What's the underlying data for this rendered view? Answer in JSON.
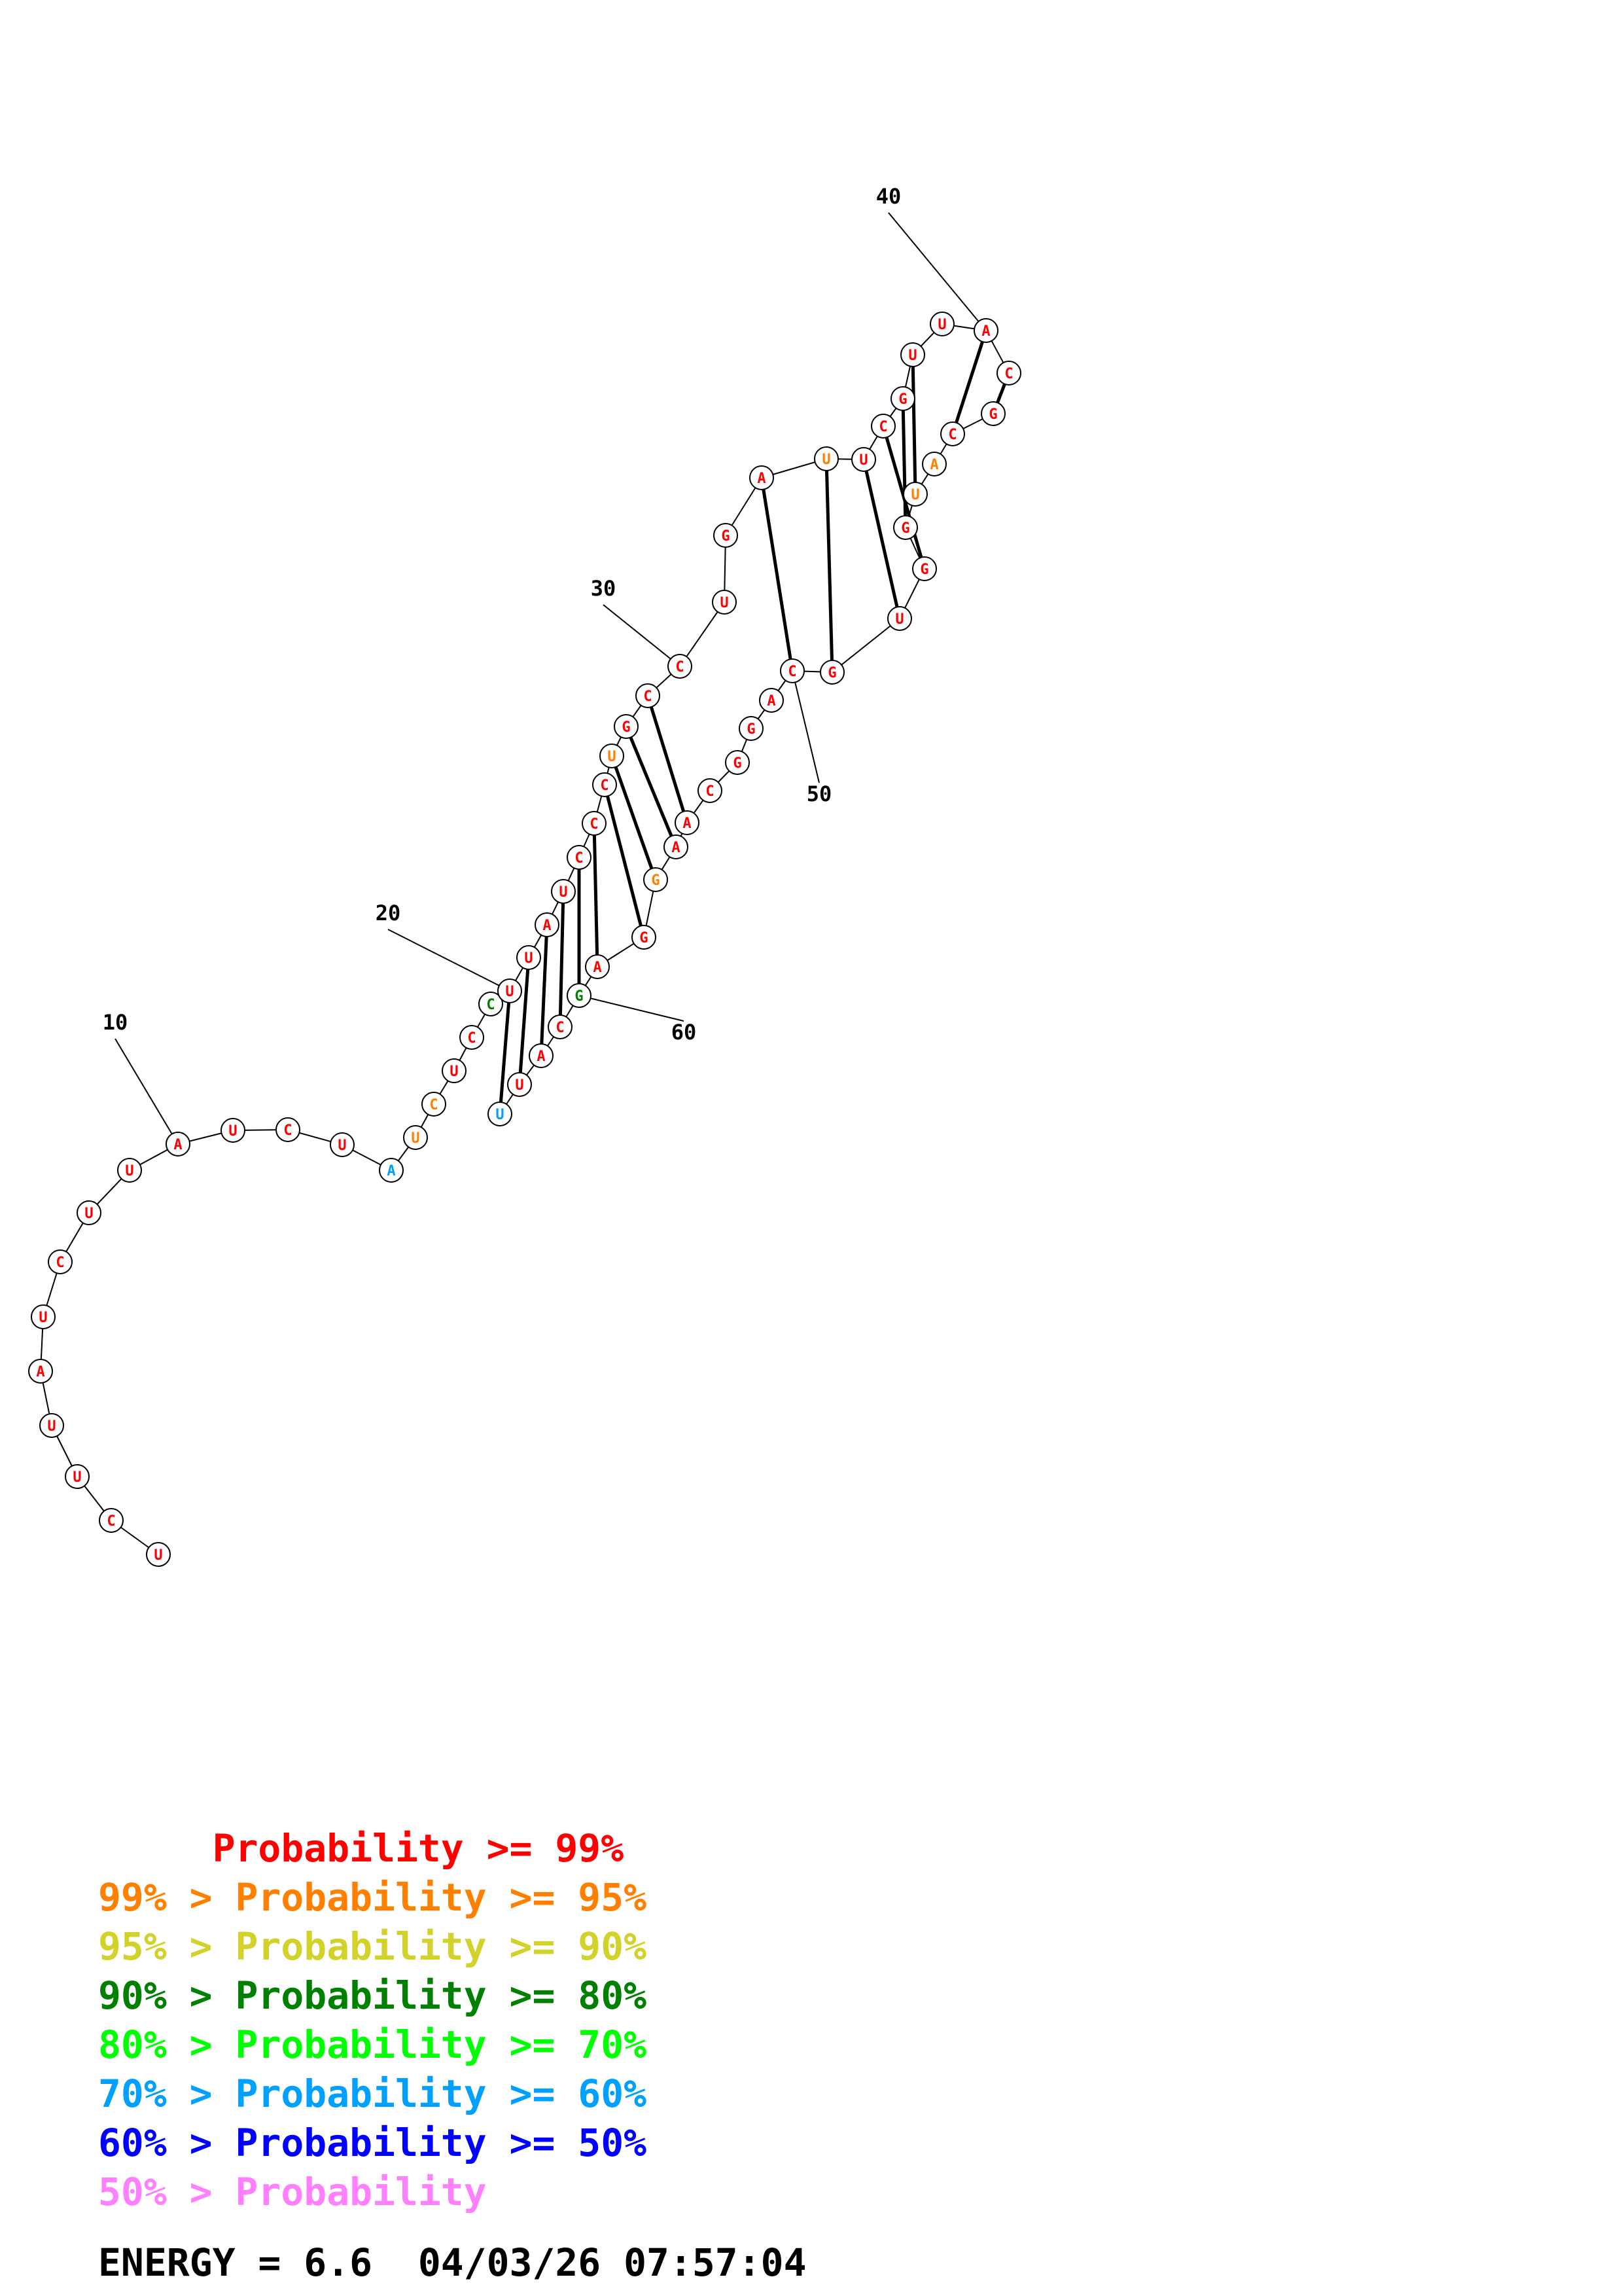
{
  "sequence": "UCUUAUCUUAUCUAUCUCCUUAUCCCUGCCUGAUUCGUUACGCAUGGUGCAGGCAAGGAGCAUU",
  "pairs": [
    [
      20,
      64
    ],
    [
      21,
      63
    ],
    [
      22,
      62
    ],
    [
      23,
      61
    ],
    [
      24,
      60
    ],
    [
      25,
      59
    ],
    [
      26,
      58
    ],
    [
      27,
      57
    ],
    [
      28,
      56
    ],
    [
      29,
      55
    ],
    [
      33,
      50
    ],
    [
      34,
      49
    ],
    [
      35,
      48
    ],
    [
      36,
      47
    ],
    [
      37,
      46
    ],
    [
      38,
      45
    ],
    [
      40,
      43
    ],
    [
      41,
      42
    ]
  ],
  "position_labels": [
    {
      "n": "10",
      "index": 10
    },
    {
      "n": "20",
      "index": 20
    },
    {
      "n": "30",
      "index": 30
    },
    {
      "n": "40",
      "index": 40
    },
    {
      "n": "50",
      "index": 50
    },
    {
      "n": "60",
      "index": 60
    }
  ],
  "colors": {
    "p99": "#ff0000",
    "p95": "#ff8000",
    "p90": "#d2d22a",
    "p80": "#008000",
    "p70": "#00ff00",
    "p60": "#00a0ff",
    "p50": "#0000ff",
    "p_low": "#ff80ff"
  },
  "legend": [
    {
      "text": "     Probability >= 99%",
      "color": "#ff0000"
    },
    {
      "text": "99% > Probability >= 95%",
      "color": "#ff8000"
    },
    {
      "text": "95% > Probability >= 90%",
      "color": "#d2d22a"
    },
    {
      "text": "90% > Probability >= 80%",
      "color": "#008000"
    },
    {
      "text": "80% > Probability >= 70%",
      "color": "#00ff00"
    },
    {
      "text": "70% > Probability >= 60%",
      "color": "#00a0ff"
    },
    {
      "text": "60% > Probability >= 50%",
      "color": "#0000ff"
    },
    {
      "text": "50% > Probability",
      "color": "#ff80ff"
    }
  ],
  "footer": {
    "energy": "ENERGY = 6.6  04/03/26 07:57:04"
  }
}
